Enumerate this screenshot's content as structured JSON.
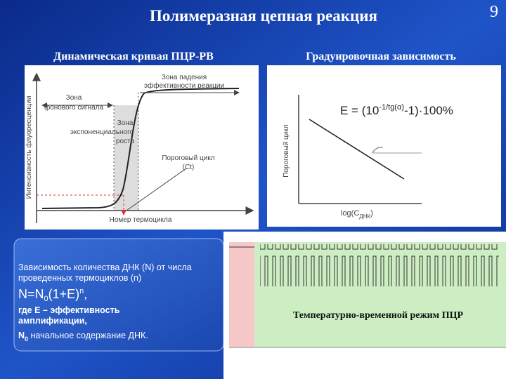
{
  "header": {
    "title": "Полимеразная цепная реакция",
    "slide_number": "9"
  },
  "left_panel": {
    "heading": "Динамическая кривая ПЦР-РВ",
    "y_axis_label": "Интенсивность флуоресценции",
    "x_axis_label": "Номер термоцикла",
    "zone_decline": [
      "Зона падения",
      "эффективности реакции"
    ],
    "zone_background": [
      "Зона",
      "фонового сигнала"
    ],
    "zone_exponential": [
      "Зона",
      "экспоненциального",
      "роста"
    ],
    "threshold_cycle": [
      "Пороговый цикл",
      "(Ct)"
    ]
  },
  "right_panel": {
    "heading": "Градуировочная зависимость",
    "formula": {
      "base": "E = (10",
      "exponent": "-1/tg(α)",
      "rest": "-1)·100%"
    },
    "y_axis_label": "Пороговый цикл",
    "x_axis_label": {
      "main": "log(C",
      "subscript": "ДНК",
      "close": ")"
    }
  },
  "info_box": {
    "intro": "Зависимость количества ДНК (N) от числа проведенных термоциклов (n)",
    "formula": {
      "a": "N=N",
      "sub": "0",
      "b": "(1+E)",
      "sup": "n",
      "c": ","
    },
    "definition_e": "где Е – эффективность амплификации,",
    "definition_n0": {
      "symbol": "N",
      "sub": "0",
      "text": " начальное содержание ДНК."
    }
  },
  "pcr_panel": {
    "caption": "Температурно-временной режим ПЦР"
  }
}
